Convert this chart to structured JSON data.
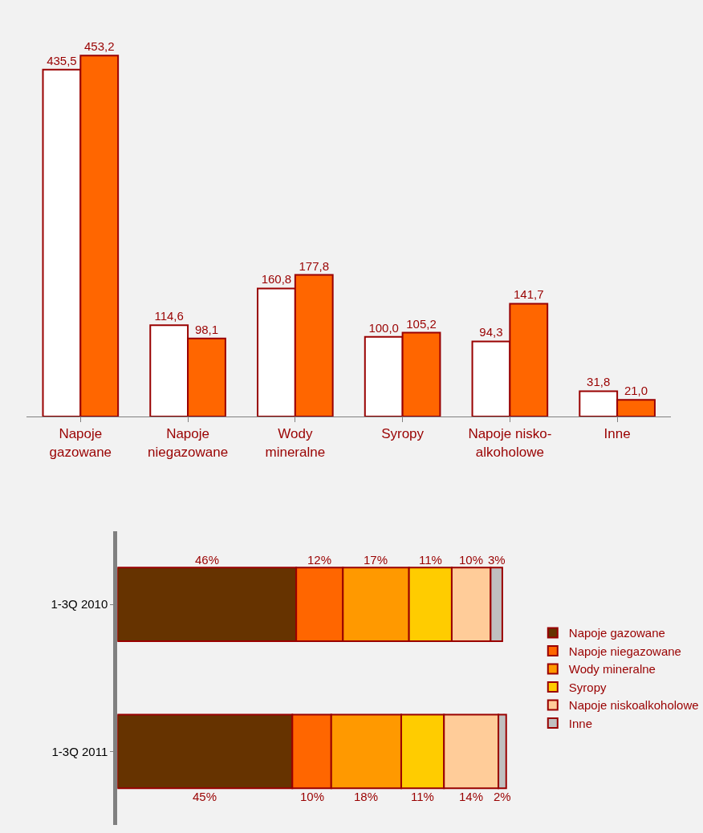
{
  "chart_data": [
    {
      "type": "bar",
      "categories": [
        "Napoje\ngazowane",
        "Napoje\nniegazowane",
        "Wody\nmineralne",
        "Syropy",
        "Napoje nisko-\nalkoholowe",
        "Inne"
      ],
      "data_labels": true,
      "legend": false,
      "grid": false,
      "series": [
        {
          "color": "#ffffff",
          "values": [
            435.5,
            114.6,
            160.8,
            100.0,
            94.3,
            31.8
          ],
          "value_labels": [
            "435,5",
            "114,6",
            "160,8",
            "100,0",
            "94,3",
            "31,8"
          ]
        },
        {
          "color": "#ff6600",
          "values": [
            453.2,
            98.1,
            177.8,
            105.2,
            141.7,
            21.0
          ],
          "value_labels": [
            "453,2",
            "98,1",
            "177,8",
            "105,2",
            "141,7",
            "21,0"
          ]
        }
      ]
    },
    {
      "type": "bar",
      "orientation": "horizontal",
      "stacked": true,
      "categories": [
        "1-3Q 2010",
        "1-3Q 2011"
      ],
      "data_labels": true,
      "legend": "right",
      "grid": false,
      "series": [
        {
          "name": "Napoje gazowane",
          "color": "#663300",
          "values": [
            46,
            45
          ],
          "value_labels": [
            "46%",
            "45%"
          ]
        },
        {
          "name": "Napoje niegazowane",
          "color": "#ff6600",
          "values": [
            12,
            10
          ],
          "value_labels": [
            "12%",
            "10%"
          ]
        },
        {
          "name": "Wody mineralne",
          "color": "#ff9900",
          "values": [
            17,
            18
          ],
          "value_labels": [
            "17%",
            "18%"
          ]
        },
        {
          "name": "Syropy",
          "color": "#ffcc00",
          "values": [
            11,
            11
          ],
          "value_labels": [
            "11%",
            "11%"
          ]
        },
        {
          "name": "Napoje niskoalkoholowe",
          "color": "#ffcc99",
          "values": [
            10,
            14
          ],
          "value_labels": [
            "10%",
            "14%"
          ]
        },
        {
          "name": "Inne",
          "color": "#c0c0c0",
          "values": [
            3,
            2
          ],
          "value_labels": [
            "3%",
            "2%"
          ]
        }
      ]
    }
  ]
}
